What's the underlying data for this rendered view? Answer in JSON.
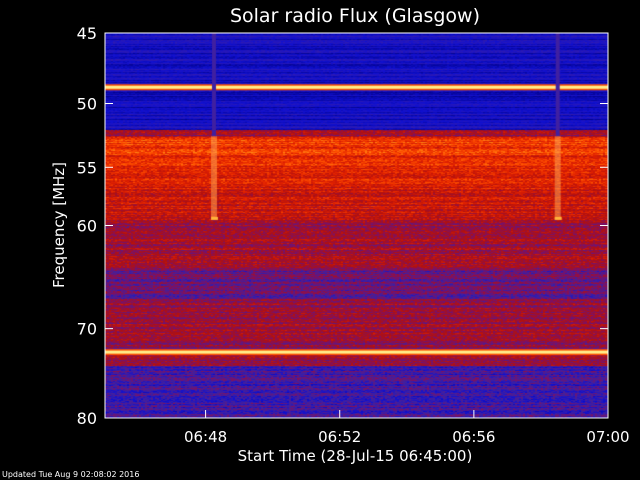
{
  "chart_data": {
    "type": "heatmap",
    "title": "Solar radio Flux (Glasgow)",
    "xlabel": "Start Time (28-Jul-15 06:45:00)",
    "ylabel": "Frequency [MHz]",
    "xlim": [
      "06:45",
      "07:00"
    ],
    "ylim": [
      45,
      80
    ],
    "y_scale": "log",
    "y_ticks": [
      45,
      50,
      55,
      60,
      70,
      80
    ],
    "x_ticks": [
      "06:48",
      "06:52",
      "06:56",
      "07:00"
    ],
    "colormap": [
      "#000080",
      "#1010d0",
      "#4020a0",
      "#801060",
      "#b01010",
      "#e02000",
      "#ff5000",
      "#ffa020",
      "#ffffa0"
    ],
    "features": [
      {
        "kind": "bright band",
        "freq_mhz": 48.8
      },
      {
        "kind": "bright band",
        "freq_mhz": 72.5
      },
      {
        "kind": "dark blue band",
        "freq_range_mhz": [
          45,
          52
        ]
      },
      {
        "kind": "hot band",
        "freq_range_mhz": [
          52.5,
          59
        ]
      },
      {
        "kind": "spike",
        "time": "06:48:15",
        "freq_range_mhz": [
          52.5,
          59.5
        ]
      },
      {
        "kind": "spike",
        "time": "06:58:30",
        "freq_range_mhz": [
          52.5,
          59.5
        ]
      }
    ]
  },
  "footer": {
    "updated": "Updated Tue Aug  9 02:08:02 2016"
  }
}
